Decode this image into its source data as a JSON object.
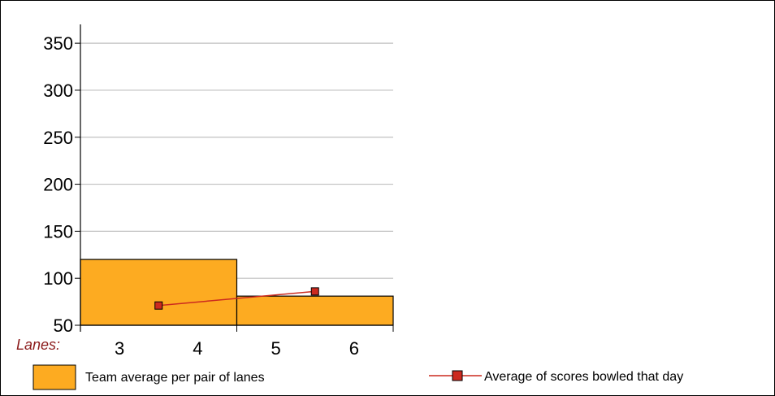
{
  "chart_data": {
    "type": "bar",
    "xlabel": "Lanes:",
    "categories": [
      "3",
      "4",
      "5",
      "6"
    ],
    "ylim": [
      50,
      370
    ],
    "yticks": [
      50,
      100,
      150,
      200,
      250,
      300,
      350
    ],
    "grid": true,
    "legend_position": "bottom",
    "series": [
      {
        "name": "Team average per pair of lanes",
        "type": "bar",
        "color": "#fdab21",
        "groups": [
          {
            "lanes": [
              "3",
              "4"
            ],
            "value": 120
          },
          {
            "lanes": [
              "5",
              "6"
            ],
            "value": 81
          }
        ]
      },
      {
        "name": "Average of scores bowled that day",
        "type": "line",
        "color": "#cc2a1f",
        "line_color": "#cc2a1f",
        "points": [
          {
            "lanes": [
              "3",
              "4"
            ],
            "value": 71
          },
          {
            "lanes": [
              "5",
              "6"
            ],
            "value": 86
          }
        ]
      }
    ]
  }
}
